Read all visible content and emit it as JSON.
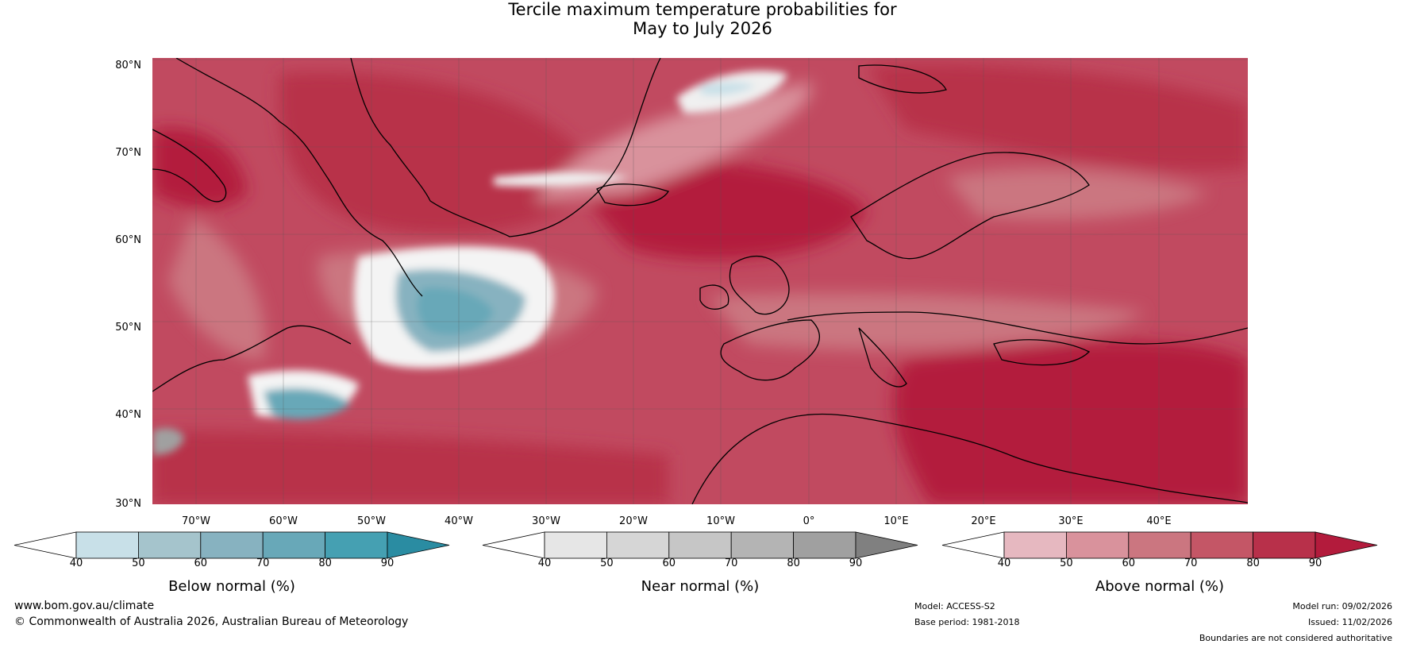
{
  "title": {
    "line1": "Tercile maximum temperature probabilities for",
    "line2": "May to July 2026"
  },
  "latitude_labels": [
    "80°N",
    "70°N",
    "60°N",
    "50°N",
    "40°N",
    "30°N"
  ],
  "longitude_labels": [
    "70°W",
    "60°W",
    "50°W",
    "40°W",
    "30°W",
    "20°W",
    "10°W",
    "0°",
    "10°E",
    "20°E",
    "30°E",
    "40°E"
  ],
  "colorbars": [
    {
      "title": "Below normal (%)",
      "ticks": [
        "40",
        "50",
        "60",
        "70",
        "80",
        "90"
      ],
      "colors": [
        "#ffffff",
        "#c8e0e8",
        "#a5c4cc",
        "#87b2c0",
        "#68a8b8",
        "#45a0b2",
        "#2a8ca2"
      ]
    },
    {
      "title": "Near normal (%)",
      "ticks": [
        "40",
        "50",
        "60",
        "70",
        "80",
        "90"
      ],
      "colors": [
        "#ffffff",
        "#e6e6e6",
        "#d6d6d6",
        "#c6c6c6",
        "#b4b4b4",
        "#a0a0a0",
        "#808080"
      ]
    },
    {
      "title": "Above normal (%)",
      "ticks": [
        "40",
        "50",
        "60",
        "70",
        "80",
        "90"
      ],
      "colors": [
        "#ffffff",
        "#e6b8c0",
        "#d9929c",
        "#cb7680",
        "#c45666",
        "#b8304a",
        "#b31b3c"
      ]
    }
  ],
  "footer": {
    "website": "www.bom.gov.au/climate",
    "copyright": "© Commonwealth of Australia 2026, Australian Bureau of Meteorology",
    "model": "Model: ACCESS-S2",
    "base_period": "Base period: 1981-2018",
    "model_run": "Model run: 09/02/2026",
    "issued": "Issued: 11/02/2026",
    "disclaimer": "Boundaries are not considered authoritative"
  }
}
